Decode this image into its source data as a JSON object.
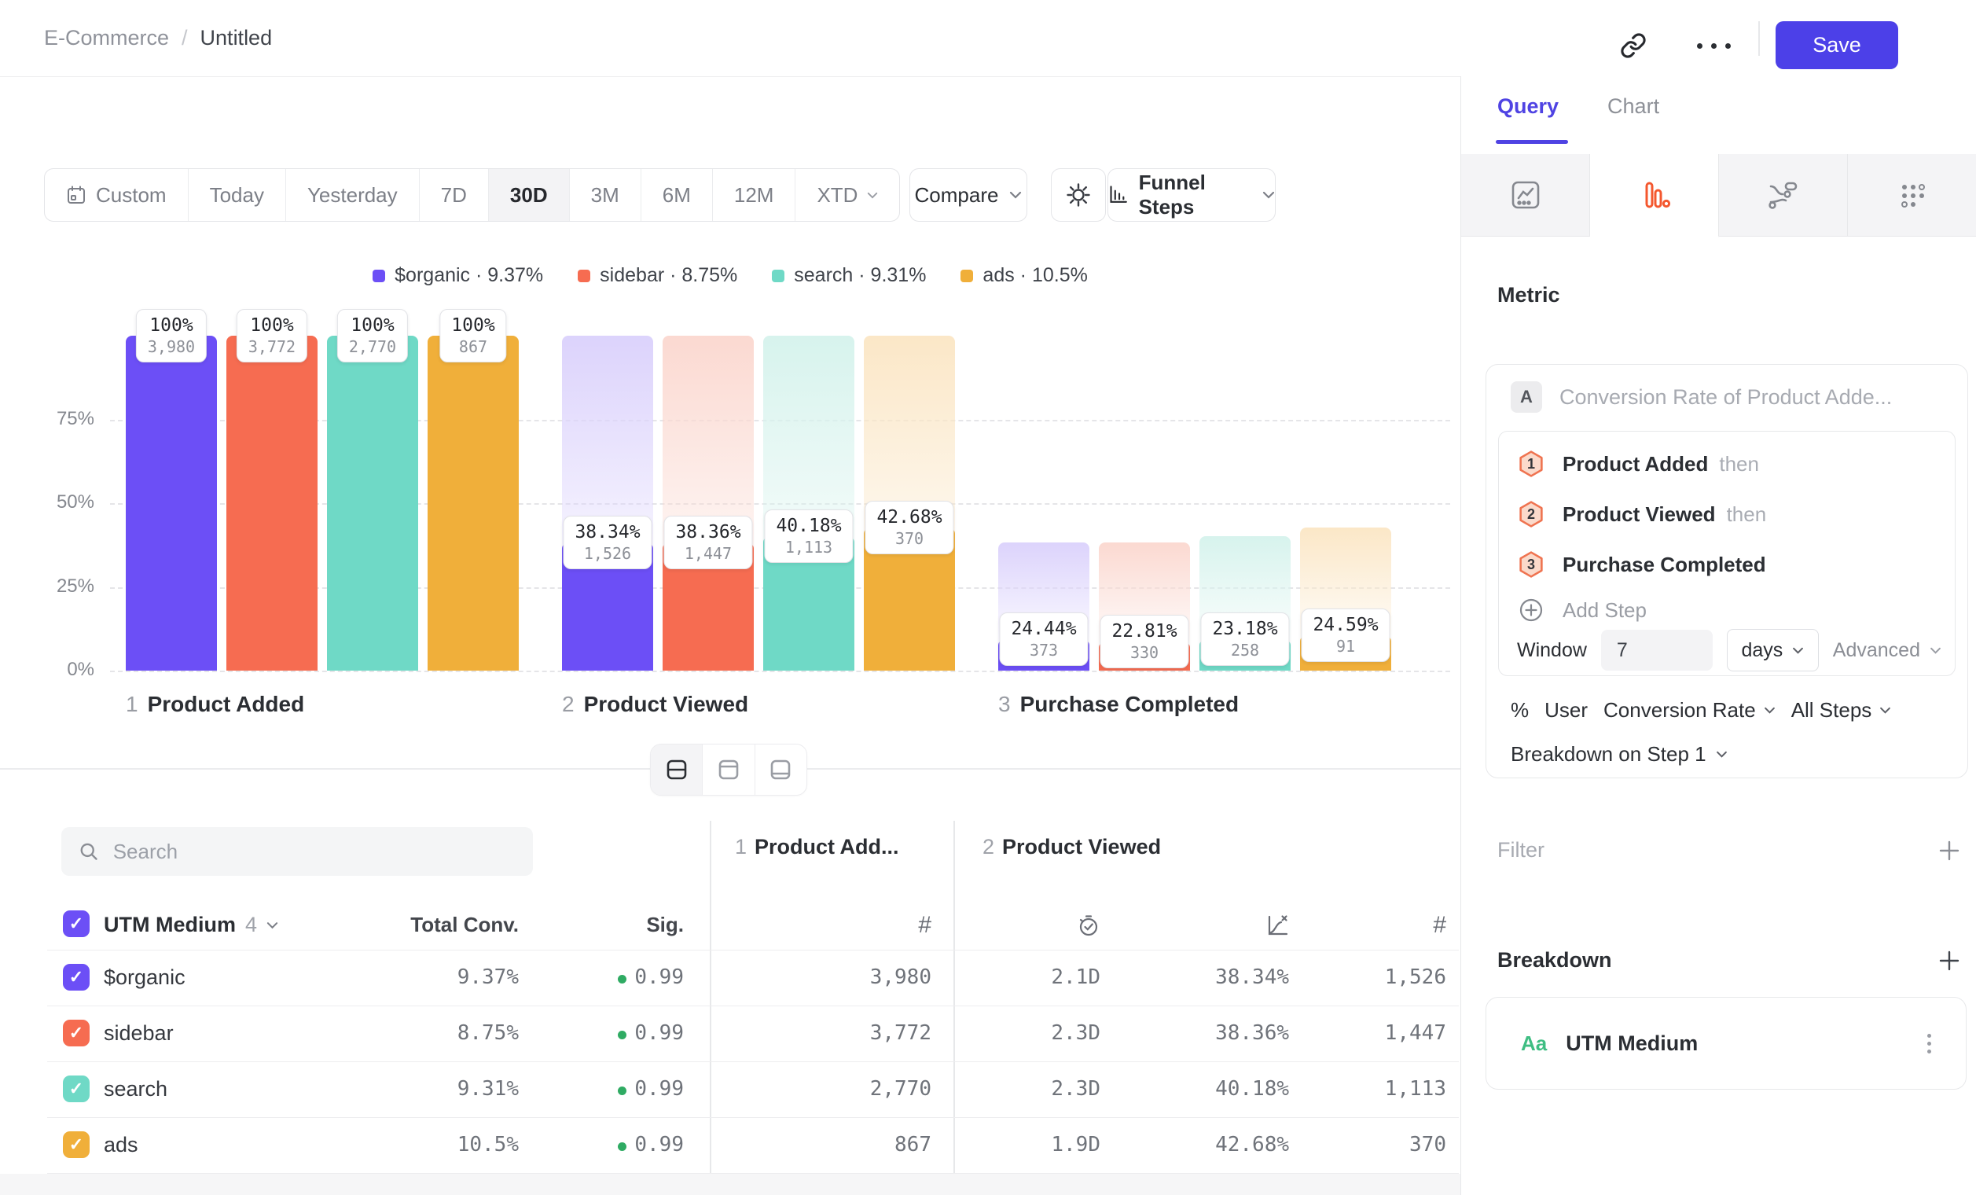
{
  "header": {
    "breadcrumb": {
      "project": "E-Commerce",
      "separator": "/",
      "title": "Untitled"
    },
    "save_label": "Save"
  },
  "toolbar": {
    "date_ranges": [
      "Custom",
      "Today",
      "Yesterday",
      "7D",
      "30D",
      "3M",
      "6M",
      "12M",
      "XTD"
    ],
    "selected_range": "30D",
    "compare_label": "Compare",
    "chart_type_label": "Funnel Steps"
  },
  "legend": {
    "items": [
      {
        "label": "$organic",
        "value": "9.37%",
        "color": "#6C4FF6"
      },
      {
        "label": "sidebar",
        "value": "8.75%",
        "color": "#F66C51"
      },
      {
        "label": "search",
        "value": "9.31%",
        "color": "#6FD9C6"
      },
      {
        "label": "ads",
        "value": "10.5%",
        "color": "#F0AF3A"
      }
    ]
  },
  "chart_data": {
    "type": "bar",
    "subtype": "funnel-steps",
    "y_ticks": [
      "0%",
      "25%",
      "50%",
      "75%"
    ],
    "ylim": [
      0,
      100
    ],
    "grid": "dashed-horizontal",
    "steps": [
      {
        "num": "1",
        "label": "Product Added"
      },
      {
        "num": "2",
        "label": "Product Viewed"
      },
      {
        "num": "3",
        "label": "Purchase Completed"
      }
    ],
    "series": [
      {
        "name": "$organic",
        "color": "#6C4FF6",
        "ghost": "#DCD3FC",
        "count_labels": [
          "3,980",
          "1,526",
          "373"
        ],
        "step_pct_labels": [
          "100%",
          "38.34%",
          "24.44%"
        ],
        "overall_pcts": [
          100,
          38.34,
          9.37
        ]
      },
      {
        "name": "sidebar",
        "color": "#F66C51",
        "ghost": "#FBD9D1",
        "count_labels": [
          "3,772",
          "1,447",
          "330"
        ],
        "step_pct_labels": [
          "100%",
          "38.36%",
          "22.81%"
        ],
        "overall_pcts": [
          100,
          38.36,
          8.75
        ]
      },
      {
        "name": "search",
        "color": "#6FD9C6",
        "ghost": "#D7F3ED",
        "count_labels": [
          "2,770",
          "1,113",
          "258"
        ],
        "step_pct_labels": [
          "100%",
          "40.18%",
          "23.18%"
        ],
        "overall_pcts": [
          100,
          40.18,
          9.31
        ]
      },
      {
        "name": "ads",
        "color": "#F0AF3A",
        "ghost": "#FBE7C7",
        "count_labels": [
          "867",
          "370",
          "91"
        ],
        "step_pct_labels": [
          "100%",
          "42.68%",
          "24.59%"
        ],
        "overall_pcts": [
          100,
          42.68,
          10.5
        ]
      }
    ]
  },
  "table": {
    "search_placeholder": "Search",
    "group_label": "UTM Medium",
    "group_count": "4",
    "col_total_conv": "Total Conv.",
    "col_sig": "Sig.",
    "step1_header": {
      "num": "1",
      "label": "Product Add..."
    },
    "step2_header": {
      "num": "2",
      "label": "Product Viewed"
    },
    "rows": [
      {
        "label": "$organic",
        "color": "#6C4FF6",
        "total_conv": "9.37%",
        "sig": "0.99",
        "step1_count": "3,980",
        "step2_time": "2.1D",
        "step2_rate": "38.34%",
        "step2_count": "1,526"
      },
      {
        "label": "sidebar",
        "color": "#F66C51",
        "total_conv": "8.75%",
        "sig": "0.99",
        "step1_count": "3,772",
        "step2_time": "2.3D",
        "step2_rate": "38.36%",
        "step2_count": "1,447"
      },
      {
        "label": "search",
        "color": "#6FD9C6",
        "total_conv": "9.31%",
        "sig": "0.99",
        "step1_count": "2,770",
        "step2_time": "2.3D",
        "step2_rate": "40.18%",
        "step2_count": "1,113"
      },
      {
        "label": "ads",
        "color": "#F0AF3A",
        "total_conv": "10.5%",
        "sig": "0.99",
        "step1_count": "867",
        "step2_time": "1.9D",
        "step2_rate": "42.68%",
        "step2_count": "370"
      }
    ]
  },
  "sidebar": {
    "tabs": {
      "query": "Query",
      "chart": "Chart"
    },
    "metric_heading": "Metric",
    "metric": {
      "badge": "A",
      "summary": "Conversion Rate of Product Adde...",
      "steps": [
        {
          "num": "1",
          "label": "Product Added",
          "suffix": "then"
        },
        {
          "num": "2",
          "label": "Product Viewed",
          "suffix": "then"
        },
        {
          "num": "3",
          "label": "Purchase Completed",
          "suffix": ""
        }
      ],
      "add_step_label": "Add Step",
      "window_label": "Window",
      "window_value": "7",
      "window_unit": "days",
      "advanced_label": "Advanced",
      "measure_prefix": "%",
      "measure_entity": "User",
      "measure_type": "Conversion Rate",
      "measure_scope": "All Steps",
      "breakdown_on": "Breakdown on Step 1"
    },
    "filter_heading": "Filter",
    "breakdown_heading": "Breakdown",
    "breakdown_item": {
      "type_badge": "Aa",
      "label": "UTM Medium"
    }
  },
  "colors": {
    "accent": "#4C40E8",
    "funnel_tab_icon": "#F4572E",
    "sig_dot": "#2FAB63",
    "aa_green": "#3FBE83"
  }
}
